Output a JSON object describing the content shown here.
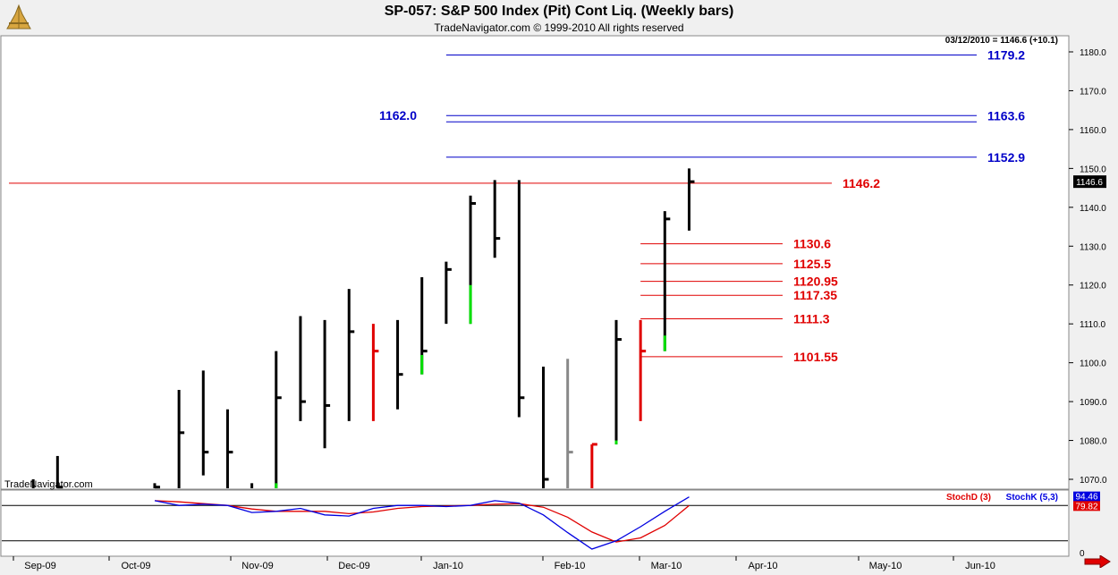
{
  "chart_data": {
    "type": "ohlc",
    "title": "SP-057:  S&P 500 Index (Pit) Cont Liq.  (Weekly bars)",
    "subtitle": "TradeNavigator.com © 1999-2010 All rights reserved",
    "readout": "03/12/2010 = 1146.6 (+10.1)",
    "watermark": "TradeNavigator.com",
    "last_price_label": "1146.6",
    "ylim": [
      1065,
      1185
    ],
    "y_ticks": [
      "1070.0",
      "1080.0",
      "1090.0",
      "1100.0",
      "1110.0",
      "1120.0",
      "1130.0",
      "1140.0",
      "1150.0",
      "1160.0",
      "1170.0",
      "1180.0"
    ],
    "x_labels": [
      "Sep-09",
      "Oct-09",
      "Nov-09",
      "Dec-09",
      "Jan-10",
      "Feb-10",
      "Mar-10",
      "Apr-10",
      "May-10",
      "Jun-10"
    ],
    "colors": {
      "normal": "#000000",
      "buy": "#00e000",
      "sell": "#e00000",
      "neutral": "#888888",
      "blue_levels": "#0000c8",
      "red_levels": "#e00000"
    },
    "bars": [
      {
        "date": "2009-08-28",
        "high": 1070,
        "low": 1060,
        "close": 1065,
        "color": "normal"
      },
      {
        "date": "2009-09-04",
        "high": 1076,
        "low": 1060,
        "close": 1068,
        "color": "normal"
      },
      {
        "date": "2009-10-02",
        "high": 1069,
        "low": 1055,
        "close": 1068,
        "color": "normal"
      },
      {
        "date": "2009-10-09",
        "high": 1093,
        "low": 1062,
        "close": 1082,
        "color": "normal"
      },
      {
        "date": "2009-10-16",
        "high": 1098,
        "low": 1071,
        "close": 1077,
        "color": "normal"
      },
      {
        "date": "2009-10-23",
        "high": 1088,
        "low": 1063,
        "close": 1077,
        "color": "normal"
      },
      {
        "date": "2009-10-30",
        "high": 1069,
        "low": 1058,
        "close": 1063,
        "color": "normal"
      },
      {
        "date": "2009-11-06",
        "high": 1103,
        "low": 1065,
        "close": 1091,
        "color": "normal"
      },
      {
        "date": "2009-11-13",
        "high": 1112,
        "low": 1085,
        "close": 1090,
        "color": "normal"
      },
      {
        "date": "2009-11-20",
        "high": 1111,
        "low": 1078,
        "close": 1089,
        "color": "normal"
      },
      {
        "date": "2009-11-27",
        "high": 1119,
        "low": 1085,
        "close": 1108,
        "color": "normal"
      },
      {
        "date": "2009-12-04",
        "high": 1110,
        "low": 1085,
        "close": 1103,
        "color": "sell"
      },
      {
        "date": "2009-12-11",
        "high": 1111,
        "low": 1088,
        "close": 1097,
        "color": "normal"
      },
      {
        "date": "2009-12-18",
        "high": 1122,
        "low": 1097,
        "close": 1103,
        "color": "normal"
      },
      {
        "date": "2009-12-25",
        "high": 1126,
        "low": 1110,
        "close": 1124,
        "color": "normal"
      },
      {
        "date": "2010-01-01",
        "high": 1143,
        "low": 1110,
        "close": 1141,
        "color": "normal"
      },
      {
        "date": "2010-01-08",
        "high": 1147,
        "low": 1127,
        "close": 1132,
        "color": "normal"
      },
      {
        "date": "2010-01-15",
        "high": 1147,
        "low": 1086,
        "close": 1091,
        "color": "normal"
      },
      {
        "date": "2010-01-22",
        "high": 1099,
        "low": 1060,
        "close": 1070,
        "color": "normal"
      },
      {
        "date": "2010-01-29",
        "high": 1101,
        "low": 1060,
        "close": 1077,
        "color": "neutral"
      },
      {
        "date": "2010-02-05",
        "high": 1079,
        "low": 1062,
        "close": 1079,
        "color": "sell"
      },
      {
        "date": "2010-02-12",
        "high": 1111,
        "low": 1079,
        "close": 1106,
        "color": "normal"
      },
      {
        "date": "2010-02-19",
        "high": 1111,
        "low": 1085,
        "close": 1103,
        "color": "sell"
      },
      {
        "date": "2010-02-26",
        "high": 1139,
        "low": 1103,
        "close": 1137,
        "color": "normal"
      },
      {
        "date": "2010-03-05",
        "high": 1150,
        "low": 1134,
        "close": 1146.6,
        "color": "normal"
      }
    ],
    "bar_highlights": [
      {
        "date": "2009-11-06",
        "from": 1069,
        "to": 1065
      },
      {
        "date": "2009-12-18",
        "from": 1102,
        "to": 1097
      },
      {
        "date": "2010-01-01",
        "from": 1120,
        "to": 1110
      },
      {
        "date": "2010-02-12",
        "from": 1080,
        "to": 1079
      },
      {
        "date": "2010-02-26",
        "from": 1107,
        "to": 1103
      }
    ],
    "levels_blue": [
      {
        "value": 1179.2,
        "label": "1179.2",
        "label_side": "right",
        "x_start": "2009-12-25"
      },
      {
        "value": 1163.6,
        "label": "1163.6",
        "label_side": "right",
        "x_start": "2009-12-25"
      },
      {
        "value": 1162.0,
        "label": "1162.0",
        "label_side": "left",
        "x_start": "2009-12-25"
      },
      {
        "value": 1152.9,
        "label": "1152.9",
        "label_side": "right",
        "x_start": "2009-12-25"
      }
    ],
    "levels_red": [
      {
        "value": 1146.2,
        "label": "1146.2",
        "x_start": "2009-08-21"
      },
      {
        "value": 1130.6,
        "label": "1130.6",
        "x_start": "2010-02-19"
      },
      {
        "value": 1125.5,
        "label": "1125.5",
        "x_start": "2010-02-19"
      },
      {
        "value": 1120.95,
        "label": "1120.95",
        "x_start": "2010-02-19"
      },
      {
        "value": 1117.35,
        "label": "1117.35",
        "x_start": "2010-02-19"
      },
      {
        "value": 1111.3,
        "label": "1111.3",
        "x_start": "2010-02-19"
      },
      {
        "value": 1101.55,
        "label": "1101.55",
        "x_start": "2010-02-19"
      }
    ],
    "indicator": {
      "name": "Stochastic",
      "d_label": "StochD (3)",
      "k_label": "StochK (5,3)",
      "k_value_label": "94.46",
      "d_value_label": "79.82",
      "axis_label": "0",
      "ylim": [
        0,
        100
      ],
      "ref_lines": [
        80,
        20
      ],
      "k": [
        88,
        80,
        82,
        80,
        68,
        70,
        75,
        64,
        62,
        75,
        80,
        80,
        78,
        80,
        88,
        84,
        64,
        34,
        6,
        20,
        44,
        70,
        94.46
      ],
      "d": [
        88,
        86,
        83,
        80,
        74,
        70,
        70,
        70,
        66,
        69,
        75,
        78,
        79,
        80,
        82,
        83,
        77,
        60,
        35,
        18,
        25,
        46,
        79.82
      ]
    }
  }
}
